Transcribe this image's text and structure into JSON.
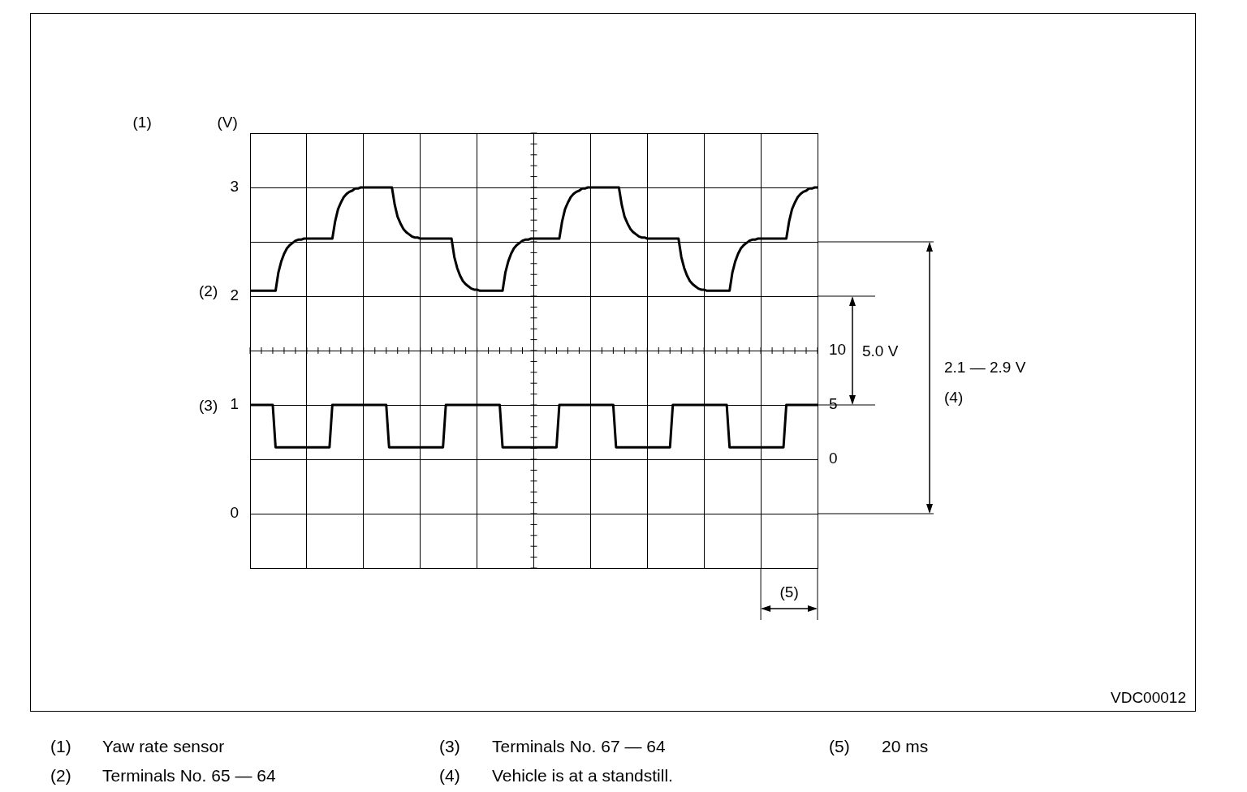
{
  "chart_data": {
    "type": "line",
    "title": "(1)",
    "ylabel": "(V)",
    "categories": [
      null,
      null,
      null,
      null,
      null,
      null,
      null,
      null,
      null,
      null,
      null,
      null,
      null,
      null,
      null,
      null,
      null,
      null,
      null,
      null,
      null,
      null,
      null,
      null,
      null,
      null,
      null,
      null,
      null,
      null,
      null,
      null,
      null,
      null,
      null,
      null,
      null,
      null,
      null,
      null,
      null,
      null,
      null,
      null,
      null,
      null,
      null,
      null,
      null,
      null,
      null,
      null,
      null,
      null,
      null,
      null,
      null,
      null,
      null,
      null,
      null,
      null,
      null,
      null,
      null,
      null,
      null,
      null,
      null,
      null,
      null,
      null,
      null,
      null,
      null,
      null,
      null,
      null,
      null,
      null,
      null,
      null,
      null,
      null,
      null,
      null,
      null,
      null,
      null,
      null,
      null,
      null,
      null,
      null,
      null,
      null,
      null,
      null,
      null,
      null,
      null,
      null,
      null,
      null,
      null,
      null,
      null,
      null,
      null,
      null,
      null,
      null,
      null,
      null,
      null,
      null,
      null,
      null,
      null,
      null,
      null,
      null,
      null,
      null,
      null,
      null,
      null,
      null,
      null,
      null,
      null,
      null,
      null,
      null,
      null,
      null,
      null,
      null,
      null,
      null,
      null,
      null,
      null,
      null,
      null,
      null,
      null,
      null,
      null,
      null,
      null,
      null,
      null,
      null,
      null,
      null,
      null,
      null,
      null,
      null,
      null,
      null,
      null,
      null,
      null,
      null,
      null,
      null,
      null,
      null,
      null,
      null,
      null,
      null,
      null,
      null,
      null,
      null,
      null,
      null,
      null,
      null,
      null,
      null,
      null,
      null,
      null,
      null,
      null,
      null,
      null,
      null,
      null,
      null,
      null,
      null,
      null,
      null,
      null,
      null,
      null
    ],
    "ylim": [
      -0.5,
      3.5
    ],
    "yticks": [
      {
        "value": -0.5,
        "label": null
      },
      0,
      {
        "value": 0.5,
        "label": null
      },
      1,
      {
        "value": 1.5,
        "label": null
      },
      2,
      {
        "value": 2.5,
        "label": null
      },
      3,
      {
        "value": 3.5,
        "label": null
      }
    ],
    "y2lim": [
      -10,
      30
    ],
    "y2ticks": [
      0,
      5,
      10
    ],
    "grid": true,
    "legend": false,
    "marker": "none",
    "series": [
      {
        "name": "(2)",
        "color": "#000000",
        "values": [
          2.05,
          2.05,
          2.05,
          2.05,
          2.05,
          2.05,
          2.05,
          2.05,
          2.05,
          2.05,
          2.22,
          2.32,
          2.39,
          2.44,
          2.47,
          2.49,
          2.51,
          2.52,
          2.52,
          2.53,
          2.53,
          2.53,
          2.53,
          2.53,
          2.53,
          2.53,
          2.53,
          2.53,
          2.53,
          2.53,
          2.69,
          2.8,
          2.86,
          2.91,
          2.94,
          2.96,
          2.97,
          2.99,
          2.99,
          3,
          3,
          3,
          3,
          3,
          3,
          3,
          3,
          3,
          3,
          3,
          3,
          2.84,
          2.73,
          2.67,
          2.62,
          2.59,
          2.57,
          2.55,
          2.54,
          2.54,
          2.53,
          2.53,
          2.53,
          2.53,
          2.53,
          2.53,
          2.53,
          2.53,
          2.53,
          2.53,
          2.53,
          2.53,
          2.36,
          2.26,
          2.19,
          2.14,
          2.11,
          2.09,
          2.07,
          2.06,
          2.06,
          2.05,
          2.05,
          2.05,
          2.05,
          2.05,
          2.05,
          2.05,
          2.05,
          2.05,
          2.22,
          2.32,
          2.39,
          2.44,
          2.47,
          2.49,
          2.51,
          2.52,
          2.52,
          2.53,
          2.53,
          2.53,
          2.53,
          2.53,
          2.53,
          2.53,
          2.53,
          2.53,
          2.53,
          2.53,
          2.69,
          2.8,
          2.86,
          2.91,
          2.94,
          2.96,
          2.97,
          2.99,
          2.99,
          3,
          3,
          3,
          3,
          3,
          3,
          3,
          3,
          3,
          3,
          3,
          3,
          2.84,
          2.73,
          2.67,
          2.62,
          2.59,
          2.57,
          2.55,
          2.54,
          2.54,
          2.53,
          2.53,
          2.53,
          2.53,
          2.53,
          2.53,
          2.53,
          2.53,
          2.53,
          2.53,
          2.53,
          2.53,
          2.36,
          2.26,
          2.19,
          2.14,
          2.11,
          2.09,
          2.07,
          2.06,
          2.06,
          2.05,
          2.05,
          2.05,
          2.05,
          2.05,
          2.05,
          2.05,
          2.05,
          2.05,
          2.22,
          2.32,
          2.39,
          2.44,
          2.47,
          2.49,
          2.51,
          2.52,
          2.52,
          2.53,
          2.53,
          2.53,
          2.53,
          2.53,
          2.53,
          2.53,
          2.53,
          2.53,
          2.53,
          2.53,
          2.69,
          2.8,
          2.86,
          2.91,
          2.94,
          2.96,
          2.97,
          2.99,
          2.99,
          3,
          3
        ]
      },
      {
        "name": "(3)",
        "color": "#000000",
        "axis": "y2",
        "values": [
          5,
          5,
          5,
          5,
          5,
          5,
          5,
          5,
          5,
          1.1,
          1.1,
          1.1,
          1.1,
          1.1,
          1.1,
          1.1,
          1.1,
          1.1,
          1.1,
          1.1,
          1.1,
          1.1,
          1.1,
          1.1,
          1.1,
          1.1,
          1.1,
          1.1,
          1.1,
          5,
          5,
          5,
          5,
          5,
          5,
          5,
          5,
          5,
          5,
          5,
          5,
          5,
          5,
          5,
          5,
          5,
          5,
          5,
          5,
          1.1,
          1.1,
          1.1,
          1.1,
          1.1,
          1.1,
          1.1,
          1.1,
          1.1,
          1.1,
          1.1,
          1.1,
          1.1,
          1.1,
          1.1,
          1.1,
          1.1,
          1.1,
          1.1,
          1.1,
          5,
          5,
          5,
          5,
          5,
          5,
          5,
          5,
          5,
          5,
          5,
          5,
          5,
          5,
          5,
          5,
          5,
          5,
          5,
          5,
          1.1,
          1.1,
          1.1,
          1.1,
          1.1,
          1.1,
          1.1,
          1.1,
          1.1,
          1.1,
          1.1,
          1.1,
          1.1,
          1.1,
          1.1,
          1.1,
          1.1,
          1.1,
          1.1,
          1.1,
          5,
          5,
          5,
          5,
          5,
          5,
          5,
          5,
          5,
          5,
          5,
          5,
          5,
          5,
          5,
          5,
          5,
          5,
          5,
          5,
          1.1,
          1.1,
          1.1,
          1.1,
          1.1,
          1.1,
          1.1,
          1.1,
          1.1,
          1.1,
          1.1,
          1.1,
          1.1,
          1.1,
          1.1,
          1.1,
          1.1,
          1.1,
          1.1,
          1.1,
          5,
          5,
          5,
          5,
          5,
          5,
          5,
          5,
          5,
          5,
          5,
          5,
          5,
          5,
          5,
          5,
          5,
          5,
          5,
          5,
          1.1,
          1.1,
          1.1,
          1.1,
          1.1,
          1.1,
          1.1,
          1.1,
          1.1,
          1.1,
          1.1,
          1.1,
          1.1,
          1.1,
          1.1,
          1.1,
          1.1,
          1.1,
          1.1,
          1.1,
          5,
          5,
          5,
          5,
          5,
          5,
          5,
          5,
          5,
          5,
          5,
          5
        ]
      }
    ],
    "annotations": [
      "2.1 — 2.9 V",
      "(4)",
      "5.0 V",
      "(5)",
      "VDC00012",
      "(1)",
      "Yaw rate sensor",
      "(2)",
      "Terminals No. 65 — 64",
      "(3)",
      "Terminals No. 67 — 64",
      "(4)",
      "Vehicle is at a standstill.",
      "(5)",
      "20 ms"
    ]
  }
}
